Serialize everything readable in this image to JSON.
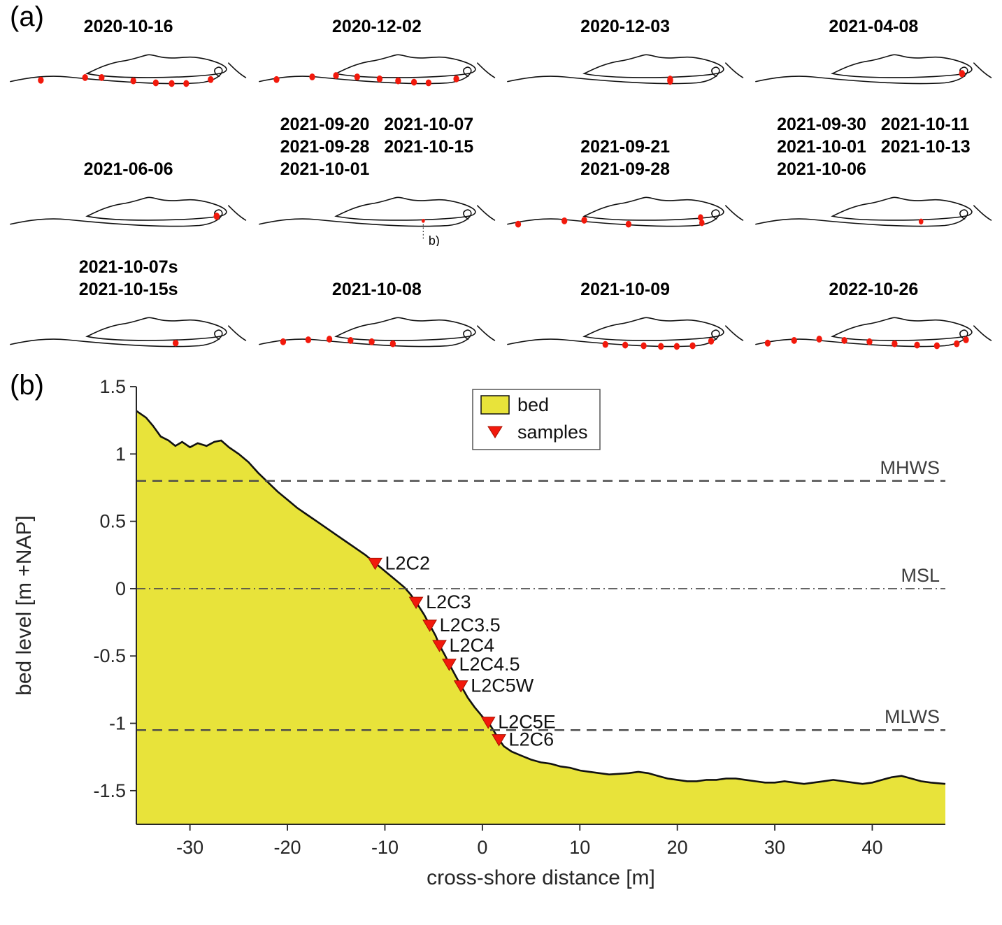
{
  "panel_a": {
    "label": "(a)",
    "coast_paths": [
      "M118,50 C136,41 152,34 172,31 C186,29 196,25 208,22 C216,20 224,25 238,26 C254,28 270,23 286,26 C300,28 318,33 326,39 C331,43 330,48 318,50 C296,54 248,56 210,56 C178,56 142,55 118,50 Z",
      "M2,62 C30,56 58,52 88,55 C118,58 150,61 186,63 C220,65 258,66 288,64 C306,62 318,56 322,48 C324,42 318,38 313,42 C309,45 311,51 318,54",
      "M332,34 C340,42 348,50 358,56"
    ],
    "maps": [
      {
        "dates": [
          "2020-10-16"
        ],
        "dots": [
          [
            48,
            60
          ],
          [
            115,
            56
          ],
          [
            140,
            56
          ],
          [
            188,
            61
          ],
          [
            222,
            64
          ],
          [
            246,
            65
          ],
          [
            268,
            65
          ],
          [
            305,
            59
          ]
        ]
      },
      {
        "dates": [
          "2020-12-02"
        ],
        "dots": [
          [
            28,
            59
          ],
          [
            82,
            55
          ],
          [
            118,
            53
          ],
          [
            150,
            55
          ],
          [
            184,
            58
          ],
          [
            212,
            61
          ],
          [
            236,
            63
          ],
          [
            258,
            64
          ],
          [
            300,
            58
          ]
        ]
      },
      {
        "dates": [
          "2020-12-03"
        ],
        "dots": [
          [
            248,
            60,
            4.5,
            7
          ]
        ]
      },
      {
        "dates": [
          "2021-04-08"
        ],
        "dots": [
          [
            314,
            50,
            4.5,
            5.5
          ]
        ]
      },
      {
        "dates": [
          "2021-06-06"
        ],
        "dots": [
          [
            314,
            50,
            4.5,
            5.5
          ]
        ]
      },
      {
        "dates": [
          "2021-09-20   2021-10-07",
          "2021-09-28   2021-10-15",
          "2021-10-01"
        ],
        "dots": [
          [
            250,
            57,
            2.5,
            3
          ]
        ],
        "annotation": "b)"
      },
      {
        "dates": [
          "2021-09-21",
          "2021-09-28"
        ],
        "dots": [
          [
            18,
            62
          ],
          [
            88,
            57
          ],
          [
            118,
            56
          ],
          [
            185,
            62
          ],
          [
            294,
            52,
            4,
            5
          ],
          [
            296,
            60,
            4,
            5
          ]
        ]
      },
      {
        "dates": [
          "2021-09-30   2021-10-11",
          "2021-10-01   2021-10-13",
          "2021-10-06"
        ],
        "dots": [
          [
            252,
            58,
            3.5,
            4.5
          ]
        ]
      },
      {
        "dates": [
          "2021-10-07s",
          "2021-10-15s"
        ],
        "dots": [
          [
            252,
            60,
            4.5,
            5
          ]
        ]
      },
      {
        "dates": [
          "2021-10-08"
        ],
        "dots": [
          [
            38,
            58
          ],
          [
            76,
            55
          ],
          [
            108,
            54
          ],
          [
            140,
            56
          ],
          [
            172,
            58
          ],
          [
            204,
            61
          ]
        ]
      },
      {
        "dates": [
          "2021-10-09"
        ],
        "dots": [
          [
            150,
            62
          ],
          [
            180,
            63
          ],
          [
            208,
            64
          ],
          [
            234,
            65
          ],
          [
            258,
            65
          ],
          [
            282,
            64
          ],
          [
            310,
            57
          ]
        ]
      },
      {
        "dates": [
          "2022-10-26"
        ],
        "dots": [
          [
            20,
            60
          ],
          [
            60,
            56
          ],
          [
            98,
            54
          ],
          [
            136,
            56
          ],
          [
            174,
            58
          ],
          [
            212,
            61
          ],
          [
            246,
            63
          ],
          [
            276,
            64
          ],
          [
            306,
            61
          ],
          [
            320,
            55
          ]
        ]
      }
    ]
  },
  "panel_b": {
    "label": "(b)"
  },
  "chart_data": {
    "type": "area",
    "title": "",
    "xlabel": "cross-shore distance [m]",
    "ylabel": "bed level [m +NAP]",
    "xlim": [
      -35.5,
      47.5
    ],
    "ylim": [
      -1.75,
      1.5
    ],
    "xticks": [
      -30,
      -20,
      -10,
      0,
      10,
      20,
      30,
      40
    ],
    "yticks": [
      -1.5,
      -1,
      -0.5,
      0,
      0.5,
      1,
      1.5
    ],
    "grid": false,
    "legend_position": "top-center",
    "colors": {
      "bed": "#e8e33a",
      "samples": "#f2190c",
      "axis": "#262626",
      "ref_line": "#4a4a4a"
    },
    "profile": [
      [
        -35.5,
        1.32
      ],
      [
        -34.5,
        1.27
      ],
      [
        -33.8,
        1.21
      ],
      [
        -33,
        1.13
      ],
      [
        -32.2,
        1.1
      ],
      [
        -31.5,
        1.06
      ],
      [
        -30.8,
        1.09
      ],
      [
        -30,
        1.05
      ],
      [
        -29.2,
        1.08
      ],
      [
        -28.3,
        1.06
      ],
      [
        -27.5,
        1.09
      ],
      [
        -26.8,
        1.1
      ],
      [
        -26,
        1.05
      ],
      [
        -25,
        1.0
      ],
      [
        -24,
        0.94
      ],
      [
        -23,
        0.86
      ],
      [
        -22,
        0.79
      ],
      [
        -21,
        0.72
      ],
      [
        -20,
        0.66
      ],
      [
        -19,
        0.6
      ],
      [
        -18,
        0.55
      ],
      [
        -17,
        0.5
      ],
      [
        -16,
        0.45
      ],
      [
        -15,
        0.4
      ],
      [
        -14,
        0.35
      ],
      [
        -13,
        0.3
      ],
      [
        -12,
        0.25
      ],
      [
        -11,
        0.19
      ],
      [
        -10,
        0.13
      ],
      [
        -9,
        0.07
      ],
      [
        -8,
        0.01
      ],
      [
        -7.4,
        -0.04
      ],
      [
        -6.8,
        -0.1
      ],
      [
        -6,
        -0.19
      ],
      [
        -5.4,
        -0.27
      ],
      [
        -4.8,
        -0.35
      ],
      [
        -4.4,
        -0.42
      ],
      [
        -3.8,
        -0.5
      ],
      [
        -3.4,
        -0.56
      ],
      [
        -2.8,
        -0.64
      ],
      [
        -2.2,
        -0.72
      ],
      [
        -1.5,
        -0.81
      ],
      [
        -0.8,
        -0.88
      ],
      [
        0,
        -0.95
      ],
      [
        0.6,
        -0.99
      ],
      [
        1.2,
        -1.06
      ],
      [
        1.7,
        -1.12
      ],
      [
        2.2,
        -1.17
      ],
      [
        3,
        -1.21
      ],
      [
        4,
        -1.24
      ],
      [
        5,
        -1.27
      ],
      [
        6,
        -1.29
      ],
      [
        7,
        -1.3
      ],
      [
        8,
        -1.32
      ],
      [
        9,
        -1.33
      ],
      [
        10,
        -1.35
      ],
      [
        11,
        -1.36
      ],
      [
        12,
        -1.37
      ],
      [
        13,
        -1.38
      ],
      [
        14,
        -1.375
      ],
      [
        15,
        -1.37
      ],
      [
        16,
        -1.36
      ],
      [
        17,
        -1.37
      ],
      [
        18,
        -1.39
      ],
      [
        19,
        -1.41
      ],
      [
        20,
        -1.42
      ],
      [
        21,
        -1.43
      ],
      [
        22,
        -1.43
      ],
      [
        23,
        -1.42
      ],
      [
        24,
        -1.42
      ],
      [
        25,
        -1.41
      ],
      [
        26,
        -1.41
      ],
      [
        27,
        -1.42
      ],
      [
        28,
        -1.43
      ],
      [
        29,
        -1.44
      ],
      [
        30,
        -1.44
      ],
      [
        31,
        -1.43
      ],
      [
        32,
        -1.44
      ],
      [
        33,
        -1.45
      ],
      [
        34,
        -1.44
      ],
      [
        35,
        -1.43
      ],
      [
        36,
        -1.42
      ],
      [
        37,
        -1.43
      ],
      [
        38,
        -1.44
      ],
      [
        39,
        -1.45
      ],
      [
        40,
        -1.44
      ],
      [
        41,
        -1.42
      ],
      [
        42,
        -1.4
      ],
      [
        43,
        -1.39
      ],
      [
        44,
        -1.41
      ],
      [
        45,
        -1.43
      ],
      [
        46,
        -1.44
      ],
      [
        47.5,
        -1.45
      ]
    ],
    "reference_lines": [
      {
        "label": "MHWS",
        "y": 0.8,
        "style": "dashed"
      },
      {
        "label": "MSL",
        "y": 0.0,
        "style": "dashdot"
      },
      {
        "label": "MLWS",
        "y": -1.05,
        "style": "dashed"
      }
    ],
    "samples": [
      {
        "label": "L2C2",
        "x": -11,
        "y": 0.19
      },
      {
        "label": "L2C3",
        "x": -6.8,
        "y": -0.1
      },
      {
        "label": "L2C3.5",
        "x": -5.4,
        "y": -0.27
      },
      {
        "label": "L2C4",
        "x": -4.4,
        "y": -0.42
      },
      {
        "label": "L2C4.5",
        "x": -3.4,
        "y": -0.56
      },
      {
        "label": "L2C5W",
        "x": -2.2,
        "y": -0.72
      },
      {
        "label": "L2C5E",
        "x": 0.6,
        "y": -0.99
      },
      {
        "label": "L2C6",
        "x": 1.7,
        "y": -1.12
      }
    ],
    "legend": [
      {
        "label": "bed",
        "marker": "area"
      },
      {
        "label": "samples",
        "marker": "triangle-down"
      }
    ]
  }
}
